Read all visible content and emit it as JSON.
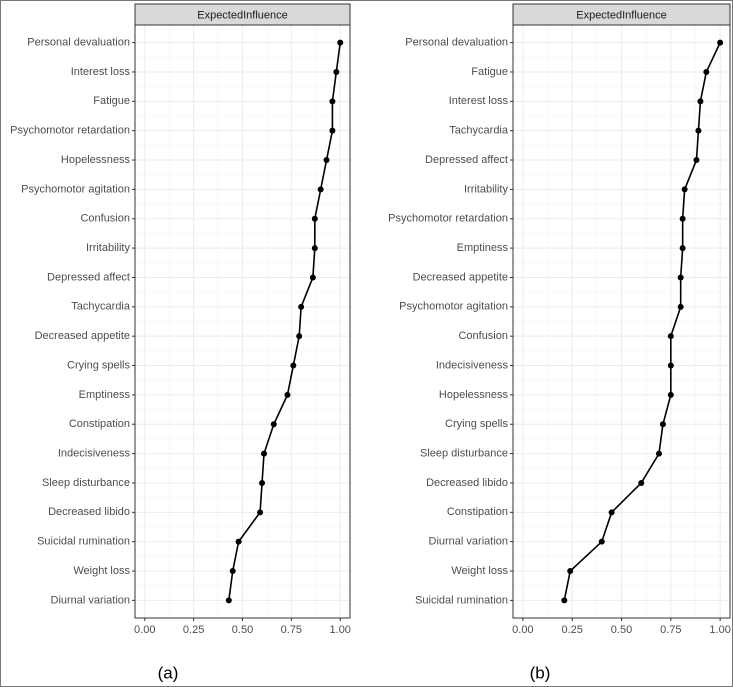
{
  "chart_data": [
    {
      "type": "line",
      "title": "ExpectedInfluence",
      "caption": "(a)",
      "categories": [
        "Personal devaluation",
        "Interest loss",
        "Fatigue",
        "Psychomotor retardation",
        "Hopelessness",
        "Psychomotor agitation",
        "Confusion",
        "Irritability",
        "Depressed affect",
        "Tachycardia",
        "Decreased appetite",
        "Crying spells",
        "Emptiness",
        "Constipation",
        "Indecisiveness",
        "Sleep disturbance",
        "Decreased libido",
        "Suicidal rumination",
        "Weight loss",
        "Diurnal variation"
      ],
      "values": [
        1.0,
        0.98,
        0.96,
        0.96,
        0.93,
        0.9,
        0.87,
        0.87,
        0.86,
        0.8,
        0.79,
        0.76,
        0.73,
        0.66,
        0.61,
        0.6,
        0.59,
        0.48,
        0.45,
        0.43
      ],
      "color": "#000000",
      "xlim": [
        -0.05,
        1.05
      ],
      "xticks": [
        {
          "value": 0,
          "label": "0.00"
        },
        {
          "value": 0.25,
          "label": "0.25"
        },
        {
          "value": 0.5,
          "label": "0.50"
        },
        {
          "value": 0.75,
          "label": "0.75"
        },
        {
          "value": 1,
          "label": "1.00"
        }
      ],
      "grid": true
    },
    {
      "type": "line",
      "title": "ExpectedInfluence",
      "caption": "(b)",
      "categories": [
        "Personal devaluation",
        "Fatigue",
        "Interest loss",
        "Tachycardia",
        "Depressed affect",
        "Irritability",
        "Psychomotor retardation",
        "Emptiness",
        "Decreased appetite",
        "Psychomotor agitation",
        "Confusion",
        "Indecisiveness",
        "Hopelessness",
        "Crying spells",
        "Sleep disturbance",
        "Decreased libido",
        "Constipation",
        "Diurnal variation",
        "Weight loss",
        "Suicidal rumination"
      ],
      "values": [
        1.0,
        0.93,
        0.9,
        0.89,
        0.88,
        0.82,
        0.81,
        0.81,
        0.8,
        0.8,
        0.75,
        0.75,
        0.75,
        0.71,
        0.69,
        0.6,
        0.45,
        0.4,
        0.24,
        0.21
      ],
      "color": "#000000",
      "xlim": [
        -0.05,
        1.05
      ],
      "xticks": [
        {
          "value": 0,
          "label": "0.00"
        },
        {
          "value": 0.25,
          "label": "0.25"
        },
        {
          "value": 0.5,
          "label": "0.50"
        },
        {
          "value": 0.75,
          "label": "0.75"
        },
        {
          "value": 1,
          "label": "1.00"
        }
      ],
      "grid": true
    }
  ]
}
